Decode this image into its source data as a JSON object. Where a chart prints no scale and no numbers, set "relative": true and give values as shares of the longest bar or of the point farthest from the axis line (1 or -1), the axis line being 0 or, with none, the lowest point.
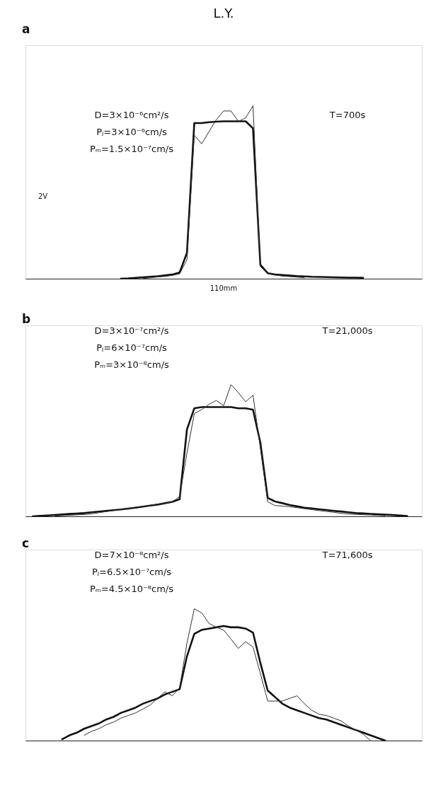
{
  "chart_data": [
    {
      "type": "line",
      "title": "L.Y.",
      "relative": true,
      "categories": [
        null,
        null,
        null,
        null,
        null,
        null,
        null,
        null,
        null,
        null,
        null,
        null,
        null,
        null,
        null,
        null,
        null,
        null,
        null,
        null,
        null,
        null,
        null,
        null,
        null,
        null,
        null,
        null,
        null,
        null,
        null,
        null,
        null,
        null,
        null,
        null,
        null,
        null,
        null,
        null,
        null,
        null,
        null,
        null,
        null,
        null,
        null,
        null,
        null,
        null,
        null,
        null,
        null,
        null,
        null
      ],
      "annotations": [
        "a",
        "D=3×10⁻⁶cm²/s",
        "Pⱼ=3×10⁻⁶cm/s",
        "Pₘ=1.5×10⁻⁷cm/s",
        "T=700s",
        "2V",
        "110mm"
      ],
      "series": [
        {
          "color": "#111111",
          "values": [
            null,
            null,
            null,
            null,
            null,
            null,
            null,
            null,
            null,
            null,
            null,
            null,
            null,
            0.0,
            0.002,
            0.005,
            0.008,
            0.011,
            0.014,
            0.019,
            0.024,
            0.036,
            0.15,
            0.9,
            0.9,
            0.905,
            0.908,
            0.91,
            0.91,
            0.91,
            0.91,
            0.87,
            0.08,
            0.032,
            0.024,
            0.021,
            0.018,
            0.015,
            0.013,
            0.011,
            0.01,
            0.009,
            0.008,
            0.007,
            0.006,
            0.006,
            0.005,
            null,
            null,
            null,
            null,
            null,
            null,
            null,
            null
          ]
        },
        {
          "color": "#333333",
          "values": [
            null,
            null,
            null,
            null,
            null,
            null,
            null,
            null,
            null,
            null,
            null,
            null,
            null,
            null,
            null,
            null,
            0.001,
            0.005,
            0.01,
            0.013,
            0.019,
            0.028,
            0.11,
            0.83,
            0.78,
            0.85,
            0.92,
            0.97,
            0.97,
            0.91,
            0.93,
            1.0,
            0.07,
            0.03,
            0.022,
            0.015,
            0.012,
            0.009,
            0.005,
            null,
            null,
            null,
            null,
            null,
            null,
            null,
            null,
            null,
            null,
            null,
            null,
            null,
            null,
            null,
            null
          ]
        }
      ]
    },
    {
      "type": "line",
      "relative": true,
      "categories": [
        null,
        null,
        null,
        null,
        null,
        null,
        null,
        null,
        null,
        null,
        null,
        null,
        null,
        null,
        null,
        null,
        null,
        null,
        null,
        null,
        null,
        null,
        null,
        null,
        null,
        null,
        null,
        null,
        null,
        null,
        null,
        null,
        null,
        null,
        null,
        null,
        null,
        null,
        null,
        null,
        null,
        null,
        null,
        null,
        null,
        null,
        null,
        null,
        null,
        null,
        null,
        null,
        null,
        null,
        null
      ],
      "annotations": [
        "b",
        "D=3×10⁻⁷cm²/s",
        "Pⱼ=6×10⁻⁷cm/s",
        "Pₘ=3×10⁻⁸cm/s",
        "T=21,000s"
      ],
      "series": [
        {
          "color": "#111111",
          "values": [
            null,
            0.0,
            0.004,
            0.007,
            0.011,
            0.014,
            0.018,
            0.021,
            0.025,
            0.031,
            0.036,
            0.042,
            0.047,
            0.052,
            0.059,
            0.066,
            0.074,
            0.082,
            0.089,
            0.1,
            0.11,
            0.13,
            0.66,
            0.82,
            0.83,
            0.83,
            0.83,
            0.83,
            0.83,
            0.82,
            0.82,
            0.81,
            0.56,
            0.14,
            0.113,
            0.1,
            0.086,
            0.076,
            0.066,
            0.06,
            0.054,
            0.048,
            0.042,
            0.037,
            0.031,
            0.025,
            0.022,
            0.019,
            0.016,
            0.013,
            0.01,
            0.006,
            0.002,
            null,
            null
          ]
        },
        {
          "color": "#333333",
          "values": [
            null,
            null,
            null,
            null,
            0.002,
            0.005,
            0.008,
            0.011,
            0.014,
            0.018,
            0.028,
            0.036,
            0.045,
            0.053,
            0.061,
            0.069,
            0.076,
            0.084,
            0.094,
            0.1,
            0.11,
            0.15,
            0.48,
            0.78,
            0.81,
            0.85,
            0.88,
            0.84,
            1.0,
            0.94,
            0.87,
            0.92,
            0.52,
            0.11,
            0.082,
            0.078,
            0.073,
            0.066,
            0.058,
            0.051,
            0.044,
            0.037,
            0.031,
            0.023,
            0.017,
            0.015,
            0.012,
            0.01,
            0.007,
            0.004,
            null,
            null,
            null,
            null,
            null
          ]
        }
      ]
    },
    {
      "type": "line",
      "relative": true,
      "categories": [
        null,
        null,
        null,
        null,
        null,
        null,
        null,
        null,
        null,
        null,
        null,
        null,
        null,
        null,
        null,
        null,
        null,
        null,
        null,
        null,
        null,
        null,
        null,
        null,
        null,
        null,
        null,
        null,
        null,
        null,
        null,
        null,
        null,
        null,
        null,
        null,
        null,
        null,
        null,
        null,
        null,
        null,
        null,
        null,
        null,
        null,
        null,
        null,
        null,
        null,
        null,
        null,
        null,
        null,
        null
      ],
      "annotations": [
        "c",
        "D=7×10⁻⁸cm²/s",
        "Pⱼ=6.5×10⁻⁷cm/s",
        "Pₘ=4.5×10⁻⁸cm/s",
        "T=71,600s"
      ],
      "series": [
        {
          "color": "#111111",
          "values": [
            null,
            null,
            null,
            null,
            null,
            0.01,
            0.04,
            0.06,
            0.09,
            0.11,
            0.13,
            0.16,
            0.18,
            0.21,
            0.23,
            0.25,
            0.28,
            0.3,
            0.32,
            0.35,
            0.37,
            0.39,
            0.64,
            0.81,
            0.84,
            0.85,
            0.86,
            0.87,
            0.86,
            0.86,
            0.85,
            0.82,
            0.59,
            0.38,
            0.33,
            0.28,
            0.25,
            0.23,
            0.21,
            0.19,
            0.17,
            0.16,
            0.14,
            0.12,
            0.1,
            0.08,
            0.06,
            0.04,
            0.02,
            0.0,
            null,
            null,
            null,
            null,
            null
          ]
        },
        {
          "color": "#333333",
          "values": [
            null,
            null,
            null,
            null,
            null,
            null,
            null,
            null,
            0.04,
            0.07,
            0.09,
            0.12,
            0.14,
            0.17,
            0.19,
            0.21,
            0.24,
            0.27,
            0.32,
            0.37,
            0.34,
            0.4,
            0.74,
            1.0,
            0.97,
            0.89,
            0.86,
            0.84,
            0.77,
            0.7,
            0.75,
            0.71,
            0.51,
            0.3,
            0.3,
            0.3,
            0.32,
            0.34,
            0.28,
            0.23,
            0.2,
            0.19,
            0.17,
            0.15,
            0.11,
            0.08,
            0.05,
            0.0,
            null,
            null,
            null,
            null,
            null,
            null,
            null
          ]
        }
      ]
    }
  ]
}
